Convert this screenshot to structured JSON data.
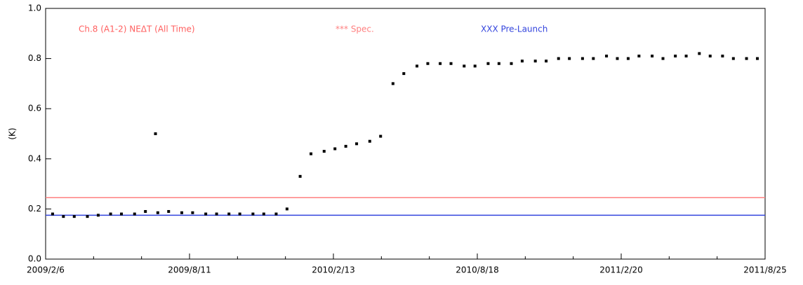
{
  "chart_data": {
    "type": "scatter",
    "title": "Ch.8 (A1-2) NEΔT  (All Time)",
    "y_label": "(K)",
    "xlim": [
      "2009/2/6",
      "2011/8/25"
    ],
    "xticks": [
      "2009/2/6",
      "2009/8/11",
      "2010/2/13",
      "2010/8/18",
      "2011/2/20",
      "2011/8/25"
    ],
    "ylim": [
      0,
      1
    ],
    "yticks": [
      {
        "value": 0,
        "label": "0.0"
      },
      0.2,
      0.4,
      0.6,
      0.8,
      {
        "value": 1,
        "label": "1.0"
      }
    ],
    "reference_lines": [
      {
        "label": "*** Spec.",
        "color": "#ff8080",
        "value": 0.245
      },
      {
        "label": "XXX Pre-Launch",
        "color": "#3344dd",
        "value": 0.175
      }
    ],
    "series": [
      {
        "color": "#000000",
        "x": [
          "2009/2/15",
          "2009/3/1",
          "2009/3/15",
          "2009/4/1",
          "2009/4/15",
          "2009/5/1",
          "2009/5/15",
          "2009/6/1",
          "2009/6/15",
          "2009/6/28",
          "2009/7/1",
          "2009/7/15",
          "2009/8/1",
          "2009/8/15",
          "2009/9/1",
          "2009/9/15",
          "2009/10/1",
          "2009/10/15",
          "2009/11/1",
          "2009/11/15",
          "2009/12/1",
          "2009/12/15",
          "2010/1/1",
          "2010/1/15",
          "2010/2/1",
          "2010/2/15",
          "2010/3/1",
          "2010/3/15",
          "2010/4/1",
          "2010/4/15",
          "2010/5/1",
          "2010/5/15",
          "2010/6/1",
          "2010/6/15",
          "2010/7/1",
          "2010/7/15",
          "2010/8/1",
          "2010/8/15",
          "2010/9/1",
          "2010/9/15",
          "2010/10/1",
          "2010/10/15",
          "2010/11/1",
          "2010/11/15",
          "2010/12/1",
          "2010/12/15",
          "2011/1/1",
          "2011/1/15",
          "2011/2/1",
          "2011/2/15",
          "2011/3/1",
          "2011/3/15",
          "2011/4/1",
          "2011/4/15",
          "2011/5/1",
          "2011/5/15",
          "2011/6/1",
          "2011/6/15",
          "2011/7/1",
          "2011/7/15",
          "2011/8/1",
          "2011/8/15"
        ],
        "values": [
          0.18,
          0.17,
          0.17,
          0.17,
          0.175,
          0.18,
          0.18,
          0.18,
          0.19,
          0.5,
          0.185,
          0.19,
          0.185,
          0.185,
          0.18,
          0.18,
          0.18,
          0.18,
          0.18,
          0.18,
          0.18,
          0.2,
          0.33,
          0.42,
          0.43,
          0.44,
          0.45,
          0.46,
          0.47,
          0.49,
          0.7,
          0.74,
          0.77,
          0.78,
          0.78,
          0.78,
          0.77,
          0.77,
          0.78,
          0.78,
          0.78,
          0.79,
          0.79,
          0.79,
          0.8,
          0.8,
          0.8,
          0.8,
          0.81,
          0.8,
          0.8,
          0.81,
          0.81,
          0.8,
          0.81,
          0.81,
          0.82,
          0.81,
          0.81,
          0.8,
          0.8,
          0.8
        ]
      }
    ]
  }
}
